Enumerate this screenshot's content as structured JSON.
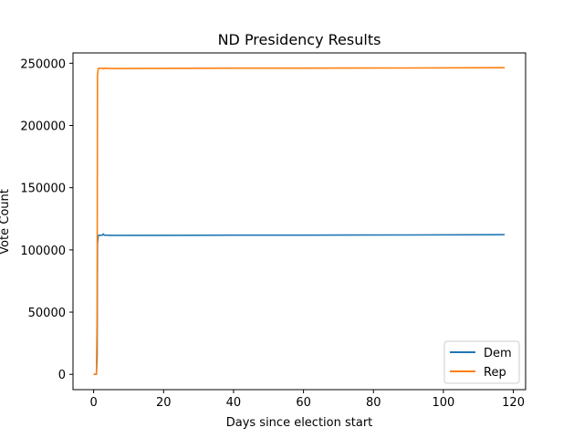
{
  "chart_data": {
    "type": "line",
    "title": "ND Presidency Results",
    "xlabel": "Days since election start",
    "ylabel": "Vote Count",
    "xlim": [
      -5.9,
      123.5
    ],
    "ylim": [
      -12300,
      258300
    ],
    "xticks": [
      0,
      20,
      40,
      60,
      80,
      100,
      120
    ],
    "yticks": [
      0,
      50000,
      100000,
      150000,
      200000,
      250000
    ],
    "grid": false,
    "legend_position": "lower-right",
    "series": [
      {
        "name": "Dem",
        "color": "#1f77b4",
        "x": [
          0,
          0.8,
          1.0,
          1.1,
          1.3,
          1.5,
          2.0,
          2.5,
          2.8,
          3.0,
          5.0,
          10,
          30,
          60,
          90,
          117.5
        ],
        "y": [
          0,
          0,
          15000,
          105000,
          111500,
          111800,
          111800,
          111900,
          112800,
          111900,
          111700,
          111700,
          111800,
          111900,
          112000,
          112200
        ]
      },
      {
        "name": "Rep",
        "color": "#ff7f0e",
        "x": [
          0,
          0.8,
          1.0,
          1.1,
          1.3,
          1.5,
          2.0,
          2.5,
          2.8,
          3.0,
          5.0,
          10,
          30,
          60,
          90,
          117.5
        ],
        "y": [
          0,
          0,
          50000,
          240000,
          245500,
          246000,
          246000,
          246000,
          245500,
          246000,
          245800,
          245800,
          246000,
          246100,
          246200,
          246400
        ]
      }
    ]
  }
}
